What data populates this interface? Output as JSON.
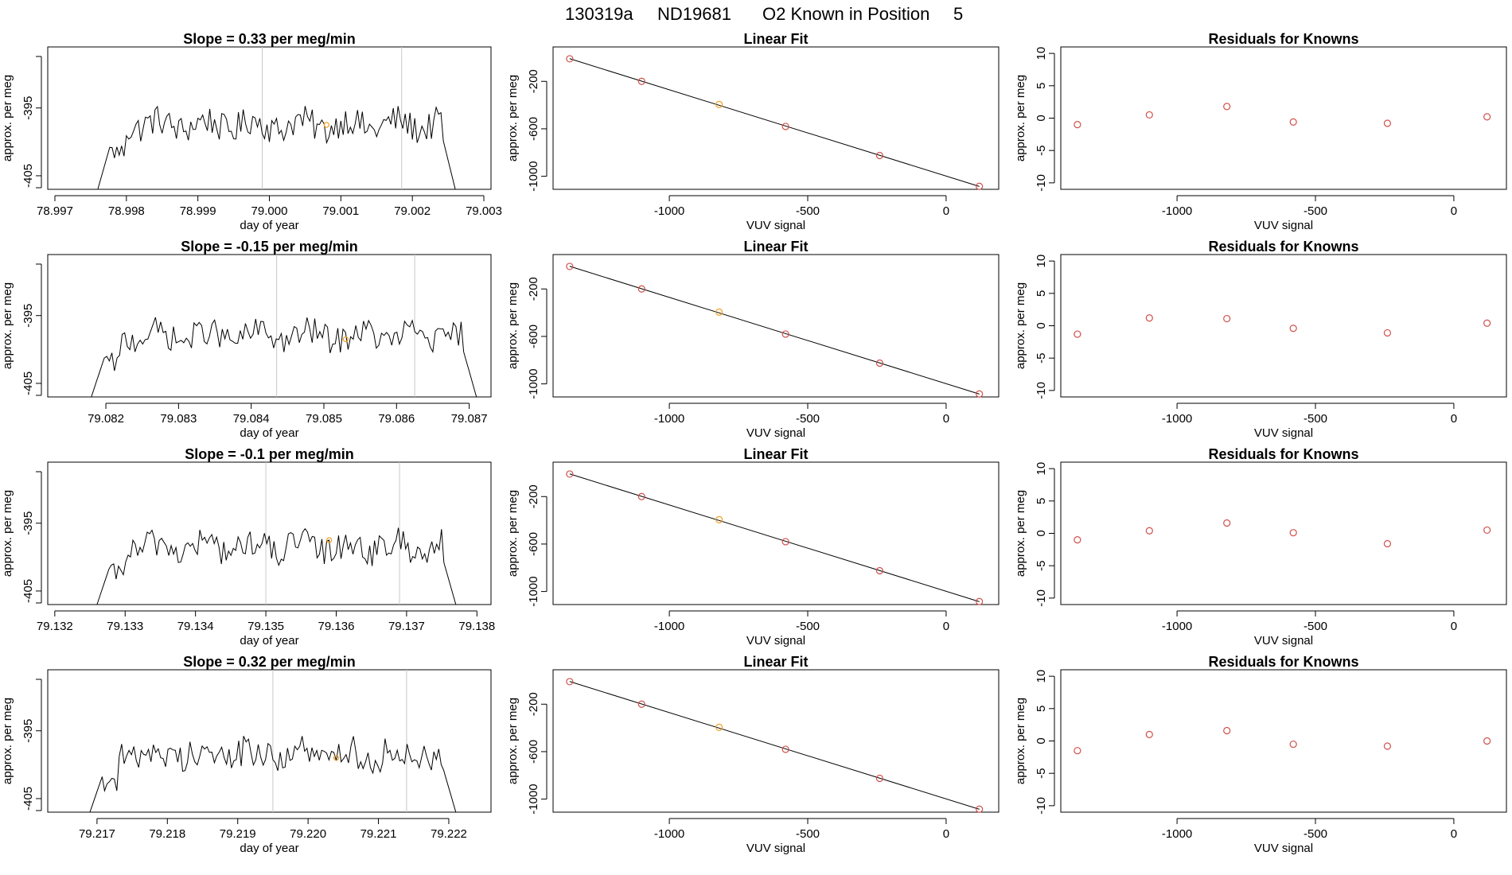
{
  "suptitle": {
    "run": "130319a",
    "tank": "ND19681",
    "label": "O2 Known in Position",
    "position": "5"
  },
  "colors": {
    "trace": "#000000",
    "point": "#d0504b",
    "highlight": "#f0a020",
    "vline": "#c8c8c8"
  },
  "chart_data": [
    {
      "type": "line",
      "row": 1,
      "panel": "timeseries",
      "title": "Slope =  0.33  per meg/min",
      "xlabel": "day of year",
      "ylabel": "approx. per meg",
      "xlim": [
        78.9969,
        79.0031
      ],
      "ylim": [
        -407,
        -386
      ],
      "xticks": [
        "78.997",
        "78.998",
        "78.999",
        "79.000",
        "79.001",
        "79.002",
        "79.003"
      ],
      "xtick_values": [
        78.997,
        78.998,
        78.999,
        79.0,
        79.001,
        79.002,
        79.003
      ],
      "yticks": [
        "-395",
        "-405"
      ],
      "ytick_values": [
        -395,
        -405
      ],
      "trace_start": 78.9976,
      "trace_end": 79.0026,
      "baseline": -397.5,
      "amplitude": 2.2,
      "vlines": [
        78.9999,
        79.00185
      ],
      "highlight": [
        79.0008,
        -397.5
      ]
    },
    {
      "type": "scatter",
      "row": 1,
      "panel": "fit",
      "title": "Linear Fit",
      "xlabel": "VUV signal",
      "ylabel": "approx. per meg",
      "xlim": [
        -1420,
        190
      ],
      "ylim": [
        -1110,
        90
      ],
      "xticks": [
        "-1000",
        "-500",
        "0"
      ],
      "xtick_values": [
        -1000,
        -500,
        0
      ],
      "yticks": [
        "-200",
        "-600",
        "-1000"
      ],
      "ytick_values": [
        -200,
        -600,
        -1000
      ],
      "x": [
        -1360,
        -1100,
        -820,
        -580,
        -240,
        120
      ],
      "y": [
        -10,
        -200,
        -395,
        -580,
        -825,
        -1085
      ],
      "highlight_index": 2
    },
    {
      "type": "scatter",
      "row": 1,
      "panel": "residuals",
      "title": "Residuals for Knowns",
      "xlabel": "VUV signal",
      "ylabel": "approx. per meg",
      "xlim": [
        -1420,
        190
      ],
      "ylim": [
        -11,
        11
      ],
      "xticks": [
        "-1000",
        "-500",
        "0"
      ],
      "xtick_values": [
        -1000,
        -500,
        0
      ],
      "yticks": [
        "-10",
        "-5",
        "0",
        "5",
        "10"
      ],
      "ytick_values": [
        -10,
        -5,
        0,
        5,
        10
      ],
      "x": [
        -1360,
        -1100,
        -820,
        -580,
        -240,
        120
      ],
      "y": [
        -1.0,
        0.5,
        1.8,
        -0.6,
        -0.8,
        0.2
      ]
    },
    {
      "type": "line",
      "row": 2,
      "panel": "timeseries",
      "title": "Slope =  -0.15  per meg/min",
      "xlabel": "day of year",
      "ylabel": "approx. per meg",
      "xlim": [
        79.0812,
        79.0873
      ],
      "ylim": [
        -407,
        -386
      ],
      "xticks": [
        "79.082",
        "79.083",
        "79.084",
        "79.085",
        "79.086",
        "79.087"
      ],
      "xtick_values": [
        79.082,
        79.083,
        79.084,
        79.085,
        79.086,
        79.087
      ],
      "yticks": [
        "-395",
        "-405"
      ],
      "ytick_values": [
        -395,
        -405
      ],
      "trace_start": 79.0818,
      "trace_end": 79.0871,
      "baseline": -398,
      "amplitude": 2.0,
      "vlines": [
        79.08435,
        79.08625
      ],
      "highlight": [
        79.0853,
        -398.5
      ]
    },
    {
      "type": "scatter",
      "row": 2,
      "panel": "fit",
      "title": "Linear Fit",
      "xlabel": "VUV signal",
      "ylabel": "approx. per meg",
      "xlim": [
        -1420,
        190
      ],
      "ylim": [
        -1110,
        90
      ],
      "xticks": [
        "-1000",
        "-500",
        "0"
      ],
      "xtick_values": [
        -1000,
        -500,
        0
      ],
      "yticks": [
        "-200",
        "-600",
        "-1000"
      ],
      "ytick_values": [
        -200,
        -600,
        -1000
      ],
      "x": [
        -1360,
        -1100,
        -820,
        -580,
        -240,
        120
      ],
      "y": [
        -10,
        -200,
        -395,
        -580,
        -825,
        -1085
      ],
      "highlight_index": 2
    },
    {
      "type": "scatter",
      "row": 2,
      "panel": "residuals",
      "title": "Residuals for Knowns",
      "xlabel": "VUV signal",
      "ylabel": "approx. per meg",
      "xlim": [
        -1420,
        190
      ],
      "ylim": [
        -11,
        11
      ],
      "xticks": [
        "-1000",
        "-500",
        "0"
      ],
      "xtick_values": [
        -1000,
        -500,
        0
      ],
      "yticks": [
        "-10",
        "-5",
        "0",
        "5",
        "10"
      ],
      "ytick_values": [
        -10,
        -5,
        0,
        5,
        10
      ],
      "x": [
        -1360,
        -1100,
        -820,
        -580,
        -240,
        120
      ],
      "y": [
        -1.3,
        1.2,
        1.1,
        -0.4,
        -1.1,
        0.4
      ]
    },
    {
      "type": "line",
      "row": 3,
      "panel": "timeseries",
      "title": "Slope =  -0.1  per meg/min",
      "xlabel": "day of year",
      "ylabel": "approx. per meg",
      "xlim": [
        79.1319,
        79.1382
      ],
      "ylim": [
        -407,
        -386
      ],
      "xticks": [
        "79.132",
        "79.133",
        "79.134",
        "79.135",
        "79.136",
        "79.137",
        "79.138"
      ],
      "xtick_values": [
        79.132,
        79.133,
        79.134,
        79.135,
        79.136,
        79.137,
        79.138
      ],
      "yticks": [
        "-395",
        "-405"
      ],
      "ytick_values": [
        -395,
        -405
      ],
      "trace_start": 79.1326,
      "trace_end": 79.1377,
      "baseline": -398.5,
      "amplitude": 2.2,
      "vlines": [
        79.135,
        79.1369
      ],
      "highlight": [
        79.1359,
        -397.5
      ]
    },
    {
      "type": "scatter",
      "row": 3,
      "panel": "fit",
      "title": "Linear Fit",
      "xlabel": "VUV signal",
      "ylabel": "approx. per meg",
      "xlim": [
        -1420,
        190
      ],
      "ylim": [
        -1110,
        90
      ],
      "xticks": [
        "-1000",
        "-500",
        "0"
      ],
      "xtick_values": [
        -1000,
        -500,
        0
      ],
      "yticks": [
        "-200",
        "-600",
        "-1000"
      ],
      "ytick_values": [
        -200,
        -600,
        -1000
      ],
      "x": [
        -1360,
        -1100,
        -820,
        -580,
        -240,
        120
      ],
      "y": [
        -10,
        -200,
        -395,
        -580,
        -825,
        -1085
      ],
      "highlight_index": 2
    },
    {
      "type": "scatter",
      "row": 3,
      "panel": "residuals",
      "title": "Residuals for Knowns",
      "xlabel": "VUV signal",
      "ylabel": "approx. per meg",
      "xlim": [
        -1420,
        190
      ],
      "ylim": [
        -11,
        11
      ],
      "xticks": [
        "-1000",
        "-500",
        "0"
      ],
      "xtick_values": [
        -1000,
        -500,
        0
      ],
      "yticks": [
        "-10",
        "-5",
        "0",
        "5",
        "10"
      ],
      "ytick_values": [
        -10,
        -5,
        0,
        5,
        10
      ],
      "x": [
        -1360,
        -1100,
        -820,
        -580,
        -240,
        120
      ],
      "y": [
        -1.0,
        0.4,
        1.6,
        0.1,
        -1.6,
        0.5
      ]
    },
    {
      "type": "line",
      "row": 4,
      "panel": "timeseries",
      "title": "Slope =  0.32  per meg/min",
      "xlabel": "day of year",
      "ylabel": "approx. per meg",
      "xlim": [
        79.2163,
        79.2226
      ],
      "ylim": [
        -407,
        -386
      ],
      "xticks": [
        "79.217",
        "79.218",
        "79.219",
        "79.220",
        "79.221",
        "79.222"
      ],
      "xtick_values": [
        79.217,
        79.218,
        79.219,
        79.22,
        79.221,
        79.222
      ],
      "yticks": [
        "-395",
        "-405"
      ],
      "ytick_values": [
        -395,
        -405
      ],
      "trace_start": 79.2169,
      "trace_end": 79.2221,
      "baseline": -398.5,
      "amplitude": 2.3,
      "vlines": [
        79.2195,
        79.2214
      ],
      "highlight": [
        79.2204,
        -399
      ]
    },
    {
      "type": "scatter",
      "row": 4,
      "panel": "fit",
      "title": "Linear Fit",
      "xlabel": "VUV signal",
      "ylabel": "approx. per meg",
      "xlim": [
        -1420,
        190
      ],
      "ylim": [
        -1110,
        90
      ],
      "xticks": [
        "-1000",
        "-500",
        "0"
      ],
      "xtick_values": [
        -1000,
        -500,
        0
      ],
      "yticks": [
        "-200",
        "-600",
        "-1000"
      ],
      "ytick_values": [
        -200,
        -600,
        -1000
      ],
      "x": [
        -1360,
        -1100,
        -820,
        -580,
        -240,
        120
      ],
      "y": [
        -10,
        -200,
        -395,
        -580,
        -825,
        -1085
      ],
      "highlight_index": 2
    },
    {
      "type": "scatter",
      "row": 4,
      "panel": "residuals",
      "title": "Residuals for Knowns",
      "xlabel": "VUV signal",
      "ylabel": "approx. per meg",
      "xlim": [
        -1420,
        190
      ],
      "ylim": [
        -11,
        11
      ],
      "xticks": [
        "-1000",
        "-500",
        "0"
      ],
      "xtick_values": [
        -1000,
        -500,
        0
      ],
      "yticks": [
        "-10",
        "-5",
        "0",
        "5",
        "10"
      ],
      "ytick_values": [
        -10,
        -5,
        0,
        5,
        10
      ],
      "x": [
        -1360,
        -1100,
        -820,
        -580,
        -240,
        120
      ],
      "y": [
        -1.5,
        1.0,
        1.6,
        -0.5,
        -0.8,
        0.0
      ]
    }
  ]
}
